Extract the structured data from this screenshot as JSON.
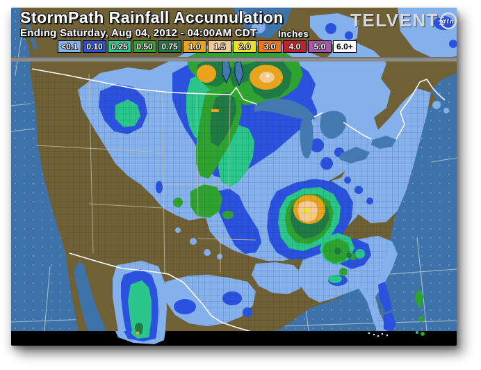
{
  "header": {
    "title": "StormPath Rainfall Accumulation",
    "subtitle": "Ending Saturday, Aug 04, 2012 - 04:00AM CDT",
    "units_label": "Inches",
    "brand": {
      "name": "TELVENT",
      "badge": "dtn"
    }
  },
  "legend": {
    "items": [
      {
        "label": "<0.1",
        "color": "#84B0EC",
        "text_color": "#FFFFFF"
      },
      {
        "label": "0.10",
        "color": "#2B52DE",
        "text_color": "#FFFFFF"
      },
      {
        "label": "0.25",
        "color": "#2BC68B",
        "text_color": "#FFFFFF"
      },
      {
        "label": "0.50",
        "color": "#2FA32F",
        "text_color": "#FFFFFF"
      },
      {
        "label": "0.75",
        "color": "#207A44",
        "text_color": "#FFFFFF"
      },
      {
        "label": "1.0",
        "color": "#E9A41D",
        "text_color": "#FFFFFF"
      },
      {
        "label": "1.5",
        "color": "#F6C892",
        "text_color": "#FFFFFF"
      },
      {
        "label": "2.0",
        "color": "#EDDF2A",
        "text_color": "#FFFFFF"
      },
      {
        "label": "3.0",
        "color": "#EE7417",
        "text_color": "#FFFFFF"
      },
      {
        "label": "4.0",
        "color": "#C2202A",
        "text_color": "#FFFFFF"
      },
      {
        "label": "5.0",
        "color": "#A855AE",
        "text_color": "#FFFFFF"
      },
      {
        "label": "6.0+",
        "color": "#FFFFFF",
        "text_color": "#000000"
      }
    ]
  },
  "map": {
    "colors": {
      "ocean": "#3E73AA",
      "ocean_dot": "#7FA9D0",
      "land": "#6F6036",
      "lake": "#4379AF",
      "state_line": "#C6BFA6",
      "border": "#FFFFFF",
      "graticule": "#B9C9CF",
      "grid_line": "#1F2430",
      "divider": "#8D8D8D",
      "divider_edge": "#6E6E6E",
      "strip": "#000000",
      "brand_text": "#D9D9D9",
      "highlight": "#F7E9C4"
    }
  }
}
